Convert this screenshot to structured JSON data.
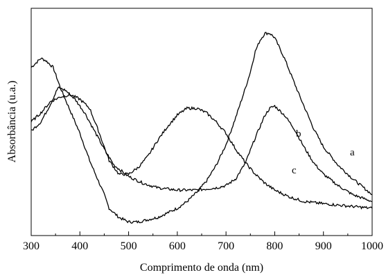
{
  "chart_data": {
    "type": "line",
    "xlabel": "Comprimento de onda (nm)",
    "ylabel": "Absorbância (u.a.)",
    "xlim": [
      300,
      1000
    ],
    "ylim": [
      0,
      1
    ],
    "x_ticks": [
      "300",
      "400",
      "500",
      "600",
      "700",
      "800",
      "900",
      "1000"
    ],
    "y_ticks_labeled": false,
    "grid": false,
    "series": [
      {
        "name": "a",
        "x": [
          300,
          310,
          320,
          330,
          345,
          360,
          380,
          400,
          420,
          440,
          450,
          460,
          480,
          500,
          520,
          540,
          560,
          580,
          600,
          620,
          640,
          660,
          680,
          700,
          720,
          740,
          750,
          760,
          770,
          780,
          790,
          800,
          820,
          850,
          880,
          900,
          930,
          960,
          1000
        ],
        "y": [
          0.74,
          0.76,
          0.78,
          0.77,
          0.74,
          0.65,
          0.55,
          0.45,
          0.33,
          0.23,
          0.18,
          0.12,
          0.08,
          0.06,
          0.06,
          0.07,
          0.08,
          0.1,
          0.12,
          0.15,
          0.19,
          0.24,
          0.31,
          0.4,
          0.52,
          0.65,
          0.72,
          0.81,
          0.86,
          0.89,
          0.89,
          0.87,
          0.78,
          0.62,
          0.47,
          0.39,
          0.31,
          0.25,
          0.18
        ]
      },
      {
        "name": "b",
        "x": [
          300,
          320,
          340,
          355,
          370,
          390,
          410,
          430,
          450,
          470,
          500,
          530,
          560,
          600,
          640,
          680,
          700,
          720,
          740,
          760,
          780,
          790,
          800,
          820,
          840,
          860,
          880,
          900,
          930,
          960,
          1000
        ],
        "y": [
          0.46,
          0.5,
          0.58,
          0.65,
          0.64,
          0.6,
          0.54,
          0.46,
          0.38,
          0.31,
          0.26,
          0.23,
          0.21,
          0.2,
          0.2,
          0.21,
          0.22,
          0.25,
          0.32,
          0.43,
          0.53,
          0.56,
          0.57,
          0.53,
          0.47,
          0.39,
          0.32,
          0.27,
          0.22,
          0.18,
          0.15
        ]
      },
      {
        "name": "c",
        "x": [
          300,
          320,
          340,
          360,
          380,
          400,
          420,
          440,
          460,
          480,
          500,
          520,
          540,
          560,
          580,
          600,
          620,
          640,
          660,
          680,
          700,
          720,
          740,
          760,
          780,
          800,
          830,
          860,
          900,
          950,
          1000
        ],
        "y": [
          0.5,
          0.54,
          0.59,
          0.61,
          0.62,
          0.6,
          0.56,
          0.45,
          0.33,
          0.27,
          0.27,
          0.3,
          0.35,
          0.42,
          0.48,
          0.53,
          0.56,
          0.56,
          0.54,
          0.5,
          0.45,
          0.38,
          0.32,
          0.27,
          0.23,
          0.2,
          0.17,
          0.15,
          0.14,
          0.13,
          0.12
        ]
      }
    ]
  }
}
